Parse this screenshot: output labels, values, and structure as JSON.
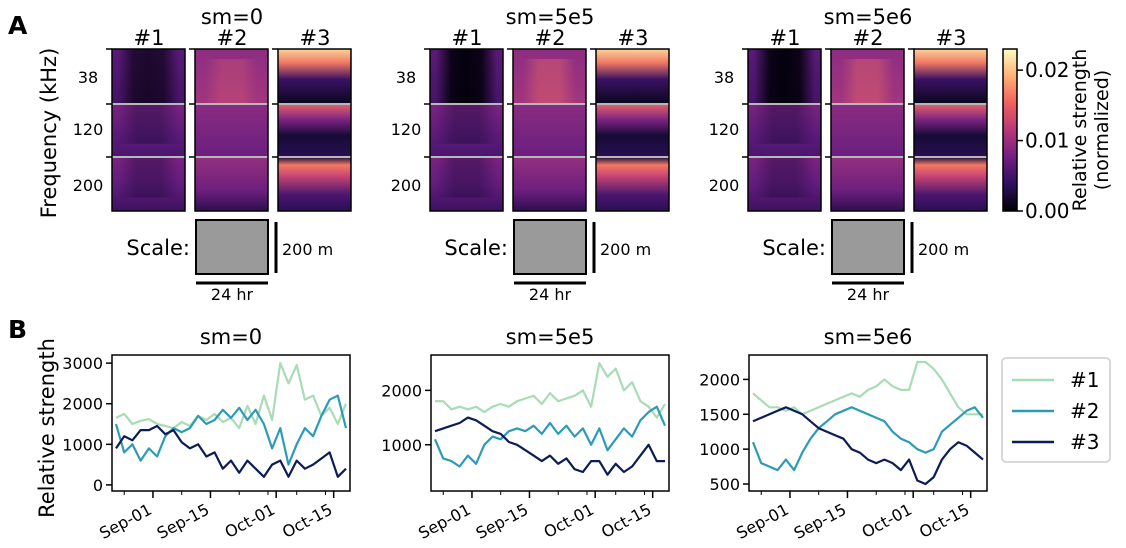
{
  "panel_labels": [
    "A",
    "B"
  ],
  "heatmap_section": {
    "groups": [
      {
        "title": "sm=0",
        "modes": [
          "#1",
          "#2",
          "#3"
        ]
      },
      {
        "title": "sm=5e5",
        "modes": [
          "#1",
          "#2",
          "#3"
        ]
      },
      {
        "title": "sm=5e6",
        "modes": [
          "#1",
          "#2",
          "#3"
        ]
      }
    ],
    "frequency_axis_label": "Frequency (kHz)",
    "frequency_labels": [
      "38",
      "120",
      "200"
    ],
    "scale": {
      "label": "Scale:",
      "vertical_label": "200 m",
      "horizontal_label": "24 hr",
      "fill_color": "#9a9a9a"
    },
    "colorbar": {
      "label_line1": "Relative strength",
      "label_line2": "(normalized)",
      "ticks": [
        "0.02",
        "0.01",
        "0.00"
      ],
      "tick_values": [
        0.02,
        0.01,
        0.0
      ],
      "range": [
        0,
        0.023
      ],
      "colormap": "magma",
      "colors": [
        "#000004",
        "#2c115f",
        "#721f81",
        "#b73779",
        "#f1605d",
        "#feb078",
        "#fcfdbf"
      ]
    }
  },
  "chart_data": [
    {
      "type": "line",
      "title": "sm=0",
      "ylabel": "Relative strength",
      "x": [
        "Aug-23",
        "Aug-25",
        "Aug-27",
        "Aug-29",
        "Aug-31",
        "Sep-02",
        "Sep-04",
        "Sep-06",
        "Sep-08",
        "Sep-10",
        "Sep-12",
        "Sep-14",
        "Sep-16",
        "Sep-18",
        "Sep-20",
        "Sep-22",
        "Sep-24",
        "Sep-26",
        "Sep-28",
        "Sep-30",
        "Oct-02",
        "Oct-04",
        "Oct-06",
        "Oct-08",
        "Oct-10",
        "Oct-12",
        "Oct-14",
        "Oct-16",
        "Oct-18"
      ],
      "xticks": [
        "Sep-01",
        "Sep-15",
        "Oct-01",
        "Oct-15"
      ],
      "yticks": [
        0,
        1000,
        2000,
        3000
      ],
      "ylim": [
        -150,
        3200
      ],
      "series": [
        {
          "name": "#1",
          "color": "#a8dcb5",
          "values": [
            1650,
            1750,
            1500,
            1580,
            1620,
            1500,
            1450,
            1400,
            1550,
            1450,
            1700,
            1600,
            1750,
            1550,
            1650,
            1400,
            1950,
            1500,
            2200,
            1600,
            3000,
            2500,
            2950,
            2100,
            2200,
            1700,
            1900,
            1500,
            2000
          ]
        },
        {
          "name": "#2",
          "color": "#2c9bb8",
          "values": [
            1500,
            800,
            1000,
            600,
            900,
            700,
            1200,
            1400,
            1300,
            1400,
            1700,
            1500,
            1600,
            1850,
            1650,
            1900,
            1600,
            1850,
            1500,
            900,
            1400,
            500,
            1000,
            1400,
            1200,
            1700,
            2100,
            2200,
            1400
          ]
        },
        {
          "name": "#3",
          "color": "#0c1c56",
          "values": [
            900,
            1200,
            1100,
            1350,
            1350,
            1450,
            1250,
            1350,
            1050,
            900,
            1000,
            700,
            800,
            400,
            600,
            300,
            600,
            400,
            200,
            500,
            600,
            200,
            600,
            400,
            500,
            650,
            800,
            200,
            400
          ]
        }
      ]
    },
    {
      "type": "line",
      "title": "sm=5e5",
      "x": [
        "Aug-23",
        "Aug-25",
        "Aug-27",
        "Aug-29",
        "Aug-31",
        "Sep-02",
        "Sep-04",
        "Sep-06",
        "Sep-08",
        "Sep-10",
        "Sep-12",
        "Sep-14",
        "Sep-16",
        "Sep-18",
        "Sep-20",
        "Sep-22",
        "Sep-24",
        "Sep-26",
        "Sep-28",
        "Sep-30",
        "Oct-02",
        "Oct-04",
        "Oct-06",
        "Oct-08",
        "Oct-10",
        "Oct-12",
        "Oct-14",
        "Oct-16",
        "Oct-18"
      ],
      "xticks": [
        "Sep-01",
        "Sep-15",
        "Oct-01",
        "Oct-15"
      ],
      "yticks": [
        1000,
        2000
      ],
      "ylim": [
        150,
        2650
      ],
      "series": [
        {
          "name": "#1",
          "color": "#a8dcb5",
          "values": [
            1800,
            1800,
            1650,
            1700,
            1650,
            1700,
            1600,
            1700,
            1750,
            1700,
            1800,
            1850,
            1900,
            1750,
            1950,
            1800,
            1850,
            1900,
            2000,
            1700,
            2500,
            2250,
            2400,
            2000,
            2150,
            1800,
            1700,
            1500,
            1750
          ]
        },
        {
          "name": "#2",
          "color": "#2c9bb8",
          "values": [
            1100,
            750,
            700,
            600,
            800,
            650,
            1000,
            1150,
            1100,
            1250,
            1300,
            1250,
            1350,
            1200,
            1400,
            1200,
            1350,
            1150,
            1300,
            1000,
            1300,
            900,
            1100,
            1300,
            1150,
            1450,
            1600,
            1700,
            1350
          ]
        },
        {
          "name": "#3",
          "color": "#0c1c56",
          "values": [
            1250,
            1300,
            1350,
            1400,
            1500,
            1450,
            1350,
            1250,
            1200,
            1050,
            1000,
            900,
            800,
            700,
            800,
            650,
            750,
            550,
            500,
            700,
            700,
            450,
            650,
            500,
            600,
            800,
            1000,
            700,
            700
          ]
        }
      ]
    },
    {
      "type": "line",
      "title": "sm=5e6",
      "x": [
        "Aug-23",
        "Aug-25",
        "Aug-27",
        "Aug-29",
        "Aug-31",
        "Sep-02",
        "Sep-04",
        "Sep-06",
        "Sep-08",
        "Sep-10",
        "Sep-12",
        "Sep-14",
        "Sep-16",
        "Sep-18",
        "Sep-20",
        "Sep-22",
        "Sep-24",
        "Sep-26",
        "Sep-28",
        "Sep-30",
        "Oct-02",
        "Oct-04",
        "Oct-06",
        "Oct-08",
        "Oct-10",
        "Oct-12",
        "Oct-14",
        "Oct-16",
        "Oct-18"
      ],
      "xticks": [
        "Sep-01",
        "Sep-15",
        "Oct-01",
        "Oct-15"
      ],
      "yticks": [
        500,
        1000,
        1500,
        2000
      ],
      "ylim": [
        400,
        2350
      ],
      "series": [
        {
          "name": "#1",
          "color": "#a8dcb5",
          "values": [
            1800,
            1700,
            1600,
            1600,
            1550,
            1600,
            1500,
            1550,
            1600,
            1650,
            1700,
            1750,
            1800,
            1750,
            1850,
            1900,
            2000,
            1900,
            1850,
            1850,
            2250,
            2250,
            2150,
            2000,
            1800,
            1600,
            1500,
            1500,
            1500
          ]
        },
        {
          "name": "#2",
          "color": "#2c9bb8",
          "values": [
            1100,
            800,
            750,
            700,
            850,
            700,
            950,
            1150,
            1300,
            1400,
            1500,
            1550,
            1600,
            1550,
            1500,
            1450,
            1400,
            1250,
            1150,
            1100,
            1000,
            950,
            1000,
            1250,
            1350,
            1450,
            1550,
            1600,
            1450
          ]
        },
        {
          "name": "#3",
          "color": "#0c1c56",
          "values": [
            1400,
            1450,
            1500,
            1550,
            1600,
            1550,
            1500,
            1400,
            1300,
            1250,
            1200,
            1150,
            1000,
            950,
            850,
            800,
            850,
            800,
            700,
            850,
            550,
            500,
            600,
            850,
            1000,
            1100,
            1050,
            950,
            850
          ]
        }
      ]
    }
  ],
  "legend": {
    "placement": "right",
    "entries": [
      "#1",
      "#2",
      "#3"
    ]
  }
}
